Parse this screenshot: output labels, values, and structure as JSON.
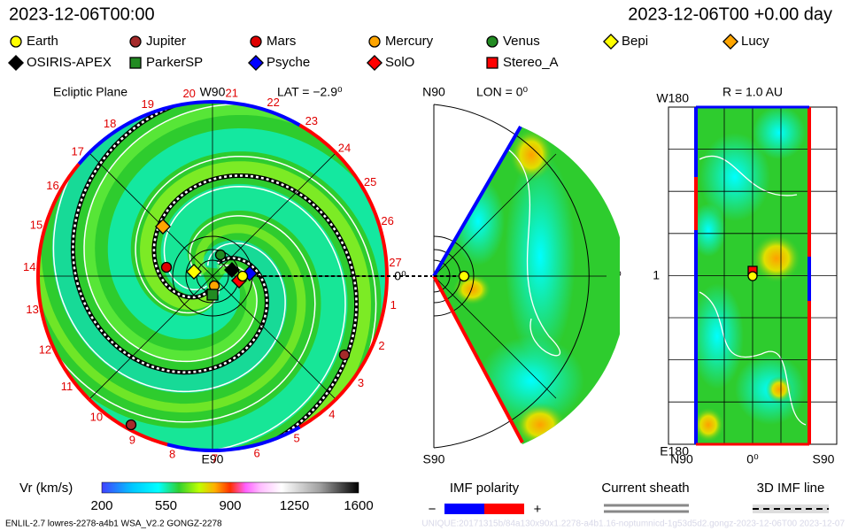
{
  "header": {
    "left": "2023-12-06T00:00",
    "right": "2023-12-06T00 +0.00 day"
  },
  "legend": [
    {
      "label": "Earth",
      "color": "#ffff00",
      "shape": "circle"
    },
    {
      "label": "Jupiter",
      "color": "#a52a2a",
      "shape": "circle"
    },
    {
      "label": "Mars",
      "color": "#e00000",
      "shape": "circle"
    },
    {
      "label": "Mercury",
      "color": "#ffa500",
      "shape": "circle"
    },
    {
      "label": "Venus",
      "color": "#228b22",
      "shape": "circle"
    },
    {
      "label": "Bepi",
      "color": "#ffff00",
      "shape": "diamond"
    },
    {
      "label": "Lucy",
      "color": "#ffa500",
      "shape": "diamond"
    },
    {
      "label": "OSIRIS-APEX",
      "color": "#000000",
      "shape": "diamond"
    },
    {
      "label": "ParkerSP",
      "color": "#228b22",
      "shape": "square"
    },
    {
      "label": "Psyche",
      "color": "#0000ff",
      "shape": "diamond"
    },
    {
      "label": "SolO",
      "color": "#ff0000",
      "shape": "diamond"
    },
    {
      "label": "Stereo_A",
      "color": "#ff0000",
      "shape": "square"
    }
  ],
  "ecliptic": {
    "title": "Ecliptic Plane",
    "top": "W90",
    "lat": "LAT = −2.9⁰",
    "bottom": "E90",
    "zero": "0⁰",
    "sectors": [
      "20",
      "21",
      "22",
      "23",
      "24",
      "25",
      "26",
      "27",
      "1",
      "2",
      "3",
      "4",
      "5",
      "6",
      "7",
      "8",
      "9",
      "10",
      "11",
      "12",
      "13",
      "14",
      "15",
      "16",
      "17",
      "18",
      "19"
    ]
  },
  "meridional": {
    "top": "N90",
    "lon": "LON = 0⁰",
    "bottom": "S90",
    "zero": "0⁰"
  },
  "radial": {
    "title": "R = 1.0 AU",
    "top": "W180",
    "bottom": "E180",
    "mid": "1",
    "xlabels": [
      "N90",
      "0⁰",
      "S90"
    ]
  },
  "colorbar": {
    "label": "Vr (km/s)",
    "ticks": [
      "200",
      "550",
      "900",
      "1250",
      "1600"
    ]
  },
  "imf": {
    "title": "IMF polarity",
    "minus": "−",
    "plus": "+"
  },
  "sheath": "Current sheath",
  "imf3d": "3D IMF line",
  "footer": {
    "left": "ENLIL-2.7 lowres-2278-a4b1 WSA_V2.2 GONGZ-2278",
    "right": "UNIQUE:20171315b/84a130x90x1.2278-a4b1.16-noptumnicd-1g53d5d2.gongz-2023-12-06T00   2023-12-07"
  }
}
